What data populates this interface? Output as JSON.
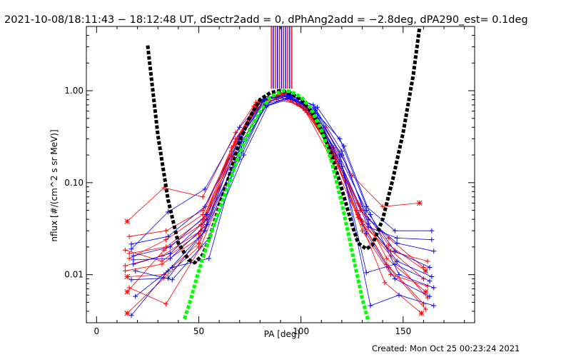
{
  "chart_data": {
    "type": "line",
    "title": "2021-10-08/18:11:43 − 18:12:48 UT, dSectr2add = 0, dPhAng2add = −2.8deg, dPA290_est=  0.1deg",
    "xlabel": "PA [deg]",
    "ylabel": "nflux [#/(cm^2 s sr MeV)]",
    "xlim": [
      -5,
      185
    ],
    "ylim": [
      0.003,
      5
    ],
    "yscale": "log",
    "grid": false,
    "x_ticks": [
      0,
      50,
      100,
      150
    ],
    "x_tick_labels": [
      "0",
      "50",
      "100",
      "150"
    ],
    "y_ticks": [
      0.01,
      0.1,
      1.0
    ],
    "y_tick_labels": [
      "0.01",
      "0.10",
      "1.00"
    ],
    "colors": {
      "red_series": "#ff0000",
      "blue_series": "#0000ff",
      "black_fit": "#000000",
      "green_fit": "#00ff00"
    },
    "vertical_markers": {
      "x": [
        85.5,
        86.5,
        87.5,
        88.5,
        89.5,
        90.5,
        91.5,
        92.5,
        93.5,
        94.5,
        95.5
      ],
      "colors": [
        "#ff0000",
        "#0000ff",
        "#ff0000",
        "#0000ff",
        "#ff0000",
        "#0000ff",
        "#ff0000",
        "#0000ff",
        "#ff0000",
        "#0000ff",
        "#ff0000"
      ],
      "y_from": 1.05,
      "y_to": 5
    },
    "series": [
      {
        "color": "red",
        "x": [
          15,
          33,
          52,
          68,
          78,
          88,
          98,
          112,
          125,
          140,
          158
        ],
        "y": [
          0.038,
          0.088,
          0.07,
          0.35,
          0.75,
          0.8,
          0.72,
          0.4,
          0.12,
          0.055,
          0.06
        ]
      },
      {
        "color": "red",
        "x": [
          14,
          32,
          50,
          66,
          77,
          90,
          102,
          115,
          128,
          142,
          160
        ],
        "y": [
          0.011,
          0.013,
          0.025,
          0.2,
          0.68,
          0.95,
          0.68,
          0.22,
          0.045,
          0.02,
          0.009
        ]
      },
      {
        "color": "red",
        "x": [
          16,
          34,
          51,
          67,
          79,
          91,
          103,
          116,
          129,
          143,
          161
        ],
        "y": [
          0.0072,
          0.0048,
          0.02,
          0.16,
          0.62,
          0.92,
          0.58,
          0.2,
          0.04,
          0.012,
          0.0042
        ]
      },
      {
        "color": "red",
        "x": [
          15,
          33,
          50,
          66,
          78,
          89,
          101,
          114,
          127,
          141,
          159
        ],
        "y": [
          0.0038,
          0.0092,
          0.02,
          0.22,
          0.7,
          0.88,
          0.66,
          0.25,
          0.05,
          0.0082,
          0.0038
        ]
      },
      {
        "color": "red",
        "x": [
          16,
          34,
          52,
          68,
          80,
          92,
          104,
          117,
          130,
          144,
          162
        ],
        "y": [
          0.017,
          0.02,
          0.04,
          0.28,
          0.78,
          0.97,
          0.6,
          0.17,
          0.035,
          0.018,
          0.014
        ]
      },
      {
        "color": "red",
        "x": [
          14,
          32,
          51,
          67,
          79,
          91,
          103,
          116,
          129,
          143,
          160
        ],
        "y": [
          0.0125,
          0.016,
          0.03,
          0.25,
          0.66,
          0.9,
          0.64,
          0.21,
          0.05,
          0.025,
          0.012
        ]
      },
      {
        "color": "red",
        "x": [
          15,
          33,
          50,
          66,
          78,
          90,
          102,
          115,
          128,
          142,
          161
        ],
        "y": [
          0.0095,
          0.01,
          0.022,
          0.18,
          0.64,
          0.86,
          0.62,
          0.23,
          0.06,
          0.015,
          0.0065
        ]
      },
      {
        "color": "red",
        "x": [
          16,
          34,
          52,
          68,
          80,
          92,
          104,
          117,
          130,
          144,
          162
        ],
        "y": [
          0.015,
          0.024,
          0.045,
          0.3,
          0.74,
          0.94,
          0.56,
          0.19,
          0.03,
          0.01,
          0.0075
        ]
      },
      {
        "color": "red",
        "x": [
          14,
          32,
          50,
          66,
          78,
          90,
          102,
          115,
          128,
          142,
          160
        ],
        "y": [
          0.0185,
          0.014,
          0.028,
          0.24,
          0.7,
          0.93,
          0.61,
          0.18,
          0.042,
          0.013,
          0.0048
        ]
      },
      {
        "color": "red",
        "x": [
          15,
          33,
          51,
          67,
          79,
          91,
          103,
          116,
          129,
          143,
          161
        ],
        "y": [
          0.0065,
          0.0185,
          0.035,
          0.2,
          0.72,
          0.91,
          0.69,
          0.24,
          0.055,
          0.021,
          0.011
        ]
      },
      {
        "color": "red",
        "x": [
          16,
          34,
          52,
          68,
          80,
          92,
          104,
          117,
          130,
          144,
          162
        ],
        "y": [
          0.026,
          0.03,
          0.05,
          0.27,
          0.76,
          0.96,
          0.63,
          0.2,
          0.038,
          0.016,
          0.0056
        ]
      },
      {
        "color": "blue",
        "x": [
          17,
          35,
          53,
          70,
          82,
          94,
          106,
          119,
          132,
          146,
          164
        ],
        "y": [
          0.019,
          0.048,
          0.085,
          0.4,
          0.82,
          0.88,
          0.62,
          0.3,
          0.055,
          0.03,
          0.03
        ]
      },
      {
        "color": "blue",
        "x": [
          18,
          36,
          54,
          71,
          83,
          95,
          107,
          120,
          133,
          147,
          165
        ],
        "y": [
          0.013,
          0.017,
          0.04,
          0.22,
          0.74,
          0.9,
          0.56,
          0.2,
          0.04,
          0.022,
          0.018
        ]
      },
      {
        "color": "blue",
        "x": [
          17,
          35,
          53,
          70,
          82,
          94,
          106,
          119,
          132,
          146,
          163
        ],
        "y": [
          0.0088,
          0.0092,
          0.03,
          0.18,
          0.66,
          0.86,
          0.6,
          0.17,
          0.028,
          0.009,
          0.0058
        ]
      },
      {
        "color": "blue",
        "x": [
          19,
          37,
          55,
          72,
          84,
          96,
          108,
          121,
          134,
          148,
          165
        ],
        "y": [
          0.0058,
          0.012,
          0.015,
          0.35,
          0.86,
          0.8,
          0.5,
          0.12,
          0.0046,
          0.006,
          0.0046
        ]
      },
      {
        "color": "blue",
        "x": [
          18,
          36,
          54,
          71,
          83,
          95,
          107,
          120,
          133,
          147,
          164
        ],
        "y": [
          0.016,
          0.02,
          0.045,
          0.28,
          0.72,
          0.84,
          0.64,
          0.22,
          0.036,
          0.014,
          0.0095
        ]
      },
      {
        "color": "blue",
        "x": [
          17,
          35,
          53,
          70,
          82,
          94,
          106,
          119,
          132,
          146,
          163
        ],
        "y": [
          0.0215,
          0.026,
          0.055,
          0.3,
          0.78,
          0.9,
          0.58,
          0.19,
          0.05,
          0.018,
          0.012
        ]
      },
      {
        "color": "blue",
        "x": [
          19,
          37,
          55,
          72,
          84,
          96,
          108,
          121,
          134,
          148,
          165
        ],
        "y": [
          0.011,
          0.0088,
          0.025,
          0.2,
          0.7,
          0.87,
          0.66,
          0.25,
          0.045,
          0.01,
          0.0072
        ]
      },
      {
        "color": "blue",
        "x": [
          18,
          36,
          54,
          71,
          83,
          95,
          107,
          120,
          133,
          147,
          164
        ],
        "y": [
          0.0145,
          0.015,
          0.035,
          0.25,
          0.68,
          0.82,
          0.61,
          0.15,
          0.033,
          0.025,
          0.024
        ]
      },
      {
        "color": "blue",
        "x": [
          17,
          35,
          53,
          70,
          82,
          94,
          106,
          119,
          132,
          146,
          163
        ],
        "y": [
          0.0036,
          0.011,
          0.03,
          0.32,
          0.8,
          0.92,
          0.7,
          0.2,
          0.0105,
          0.013,
          0.0085
        ]
      }
    ],
    "fits": [
      {
        "name": "",
        "color": "black",
        "function": "polynomial",
        "x": [
          25,
          30,
          35,
          40,
          45,
          48,
          52,
          55,
          60,
          65,
          70,
          75,
          80,
          85,
          90,
          95,
          100,
          105,
          110,
          115,
          120,
          125,
          128,
          132,
          135,
          140,
          145,
          150,
          155,
          158
        ],
        "y": [
          3.1,
          0.33,
          0.065,
          0.022,
          0.0145,
          0.0135,
          0.0165,
          0.024,
          0.055,
          0.12,
          0.28,
          0.52,
          0.8,
          0.95,
          1.0,
          0.94,
          0.8,
          0.6,
          0.38,
          0.2,
          0.085,
          0.035,
          0.022,
          0.019,
          0.021,
          0.04,
          0.11,
          0.35,
          1.5,
          4.8
        ]
      },
      {
        "name": "",
        "color": "green",
        "function": "gaussian",
        "x": [
          43,
          45,
          50,
          55,
          60,
          65,
          70,
          75,
          80,
          85,
          90,
          92,
          95,
          100,
          105,
          110,
          115,
          120,
          125,
          130,
          133
        ],
        "y": [
          0.0033,
          0.0045,
          0.011,
          0.024,
          0.05,
          0.1,
          0.21,
          0.38,
          0.6,
          0.85,
          0.98,
          1.0,
          0.98,
          0.86,
          0.64,
          0.37,
          0.17,
          0.06,
          0.018,
          0.0055,
          0.0031
        ]
      }
    ]
  },
  "footer": {
    "created_text": "Created: Mon Oct 25 00:23:24 2021"
  }
}
